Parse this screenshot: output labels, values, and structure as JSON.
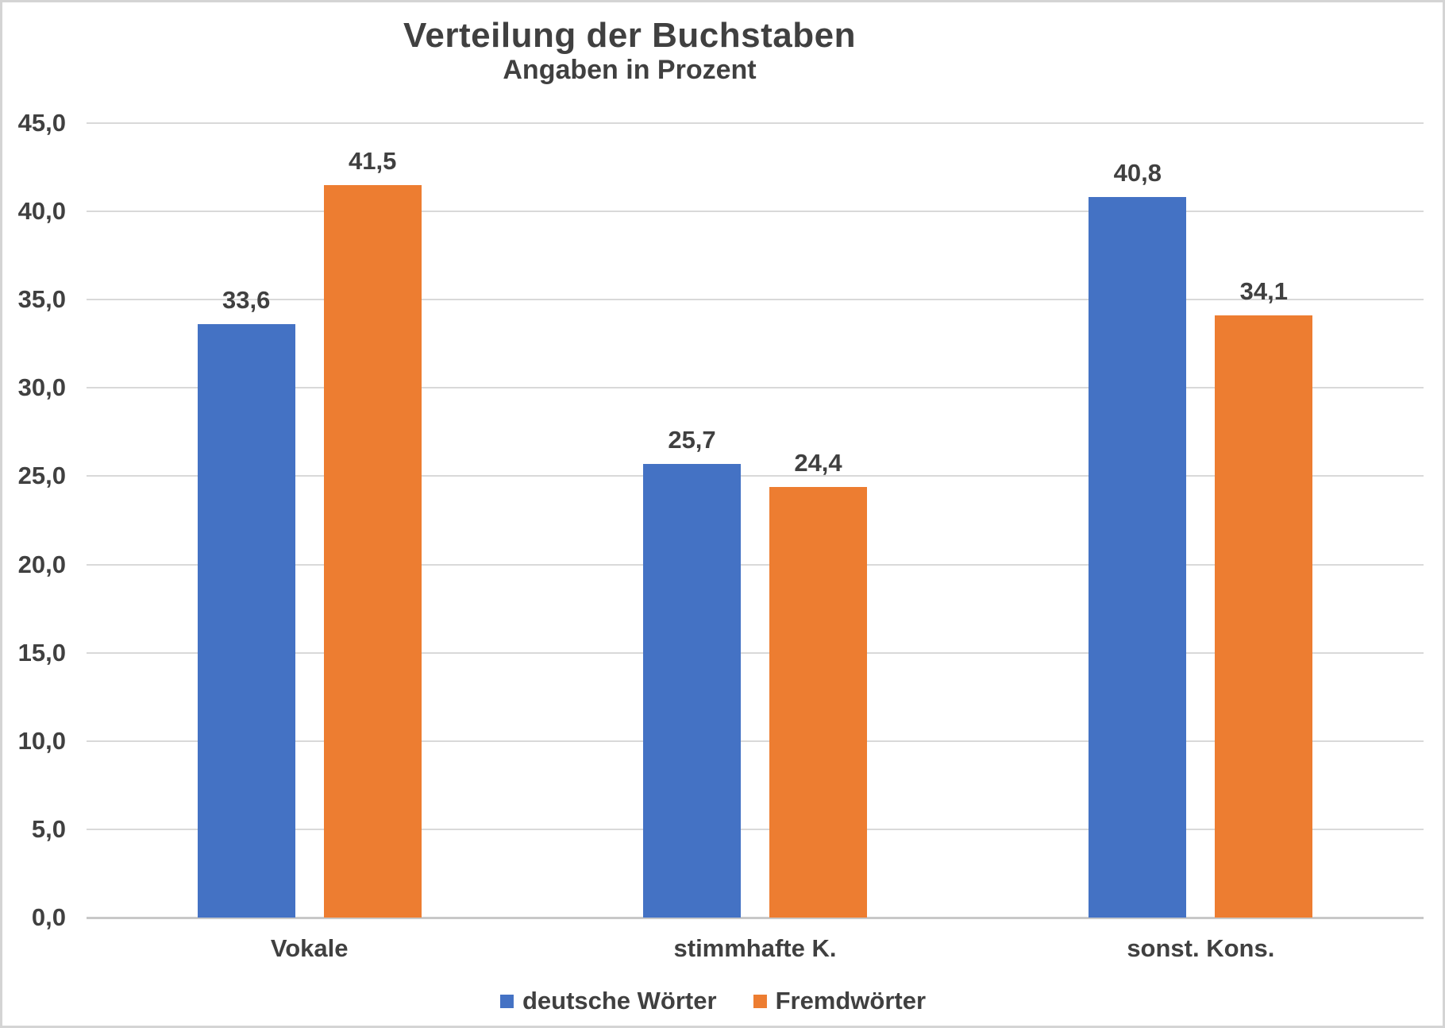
{
  "page": {
    "background": "#ffffff",
    "border_color": "#d4d4d4"
  },
  "chart_data": {
    "type": "bar",
    "title": "Verteilung der Buchstaben",
    "subtitle": "Angaben in Prozent",
    "categories": [
      "Vokale",
      "stimmhafte K.",
      "sonst. Kons."
    ],
    "series": [
      {
        "name": "deutsche Wörter",
        "color": "#4472C4",
        "values": [
          33.6,
          25.7,
          40.8
        ],
        "value_labels": [
          "33,6",
          "25,7",
          "40,8"
        ]
      },
      {
        "name": "Fremdwörter",
        "color": "#ED7D31",
        "values": [
          41.5,
          24.4,
          34.1
        ],
        "value_labels": [
          "41,5",
          "24,4",
          "34,1"
        ]
      }
    ],
    "y_axis": {
      "min": 0,
      "max": 45,
      "step": 5,
      "tick_labels": [
        "0,0",
        "5,0",
        "10,0",
        "15,0",
        "20,0",
        "25,0",
        "30,0",
        "35,0",
        "40,0",
        "45,0"
      ]
    },
    "grid": true,
    "legend_position": "bottom",
    "colors": {
      "text": "#404040",
      "gridline": "#d9d9d9",
      "axis_line": "#c8c8c8"
    }
  }
}
